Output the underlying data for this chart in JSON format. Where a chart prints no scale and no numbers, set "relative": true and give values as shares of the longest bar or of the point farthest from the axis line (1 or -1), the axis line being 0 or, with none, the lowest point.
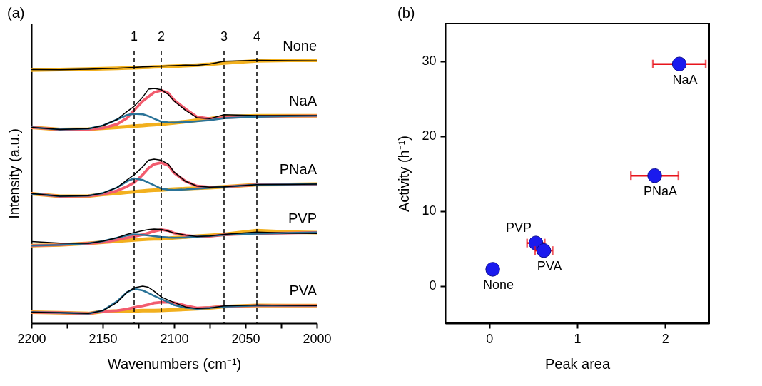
{
  "chart_data": [
    {
      "type": "line",
      "title": "(a)",
      "xlabel": "Wavenumbers (cm⁻¹)",
      "ylabel": "Intensity (a.u.)",
      "relative": true,
      "tick_labels": "x",
      "grid": false,
      "marker": "none",
      "line_style": "solid",
      "x": [
        2200,
        2180,
        2160,
        2150,
        2140,
        2133,
        2128,
        2122,
        2118,
        2114,
        2109,
        2104,
        2100,
        2092,
        2084,
        2075,
        2065,
        2042,
        2020,
        2000
      ],
      "xlim": [
        2200,
        2000
      ],
      "xticks": [
        2200,
        {
          "value": 2175,
          "label": null
        },
        2150,
        {
          "value": 2125,
          "label": null
        },
        2100,
        {
          "value": 2075,
          "label": null
        },
        2050,
        {
          "value": 2025,
          "label": null
        },
        2000
      ],
      "ref_lines": [
        {
          "axis": "x",
          "value": 2128,
          "line_style": "dashed",
          "color": "#000000"
        },
        {
          "axis": "x",
          "value": 2109,
          "line_style": "dashed",
          "color": "#000000"
        },
        {
          "axis": "x",
          "value": 2065,
          "line_style": "dashed",
          "color": "#000000"
        },
        {
          "axis": "x",
          "value": 2042,
          "line_style": "dashed",
          "color": "#000000"
        }
      ],
      "annotations": [
        "1",
        "2",
        "3",
        "4"
      ],
      "series": [
        {
          "name": "None",
          "color": "#000000",
          "values": [
            0.965,
            0.964,
            0.966,
            0.968,
            0.97,
            0.972,
            0.973,
            0.975,
            0.976,
            0.977,
            0.978,
            0.979,
            0.98,
            0.982,
            0.981,
            0.986,
            0.997,
            1.0,
            0.999,
            0.998
          ]
        },
        {
          "color": "#f2b01e",
          "values": [
            0.963,
            0.965,
            0.967,
            0.968,
            0.97,
            0.971,
            0.972,
            0.973,
            0.974,
            0.975,
            0.976,
            0.977,
            0.978,
            0.98,
            0.982,
            0.985,
            0.99,
            0.998,
            1.0,
            1.0
          ]
        },
        {
          "name": "NaA",
          "color": "#000000",
          "values": [
            0.745,
            0.737,
            0.74,
            0.752,
            0.775,
            0.805,
            0.825,
            0.86,
            0.89,
            0.893,
            0.888,
            0.87,
            0.845,
            0.81,
            0.782,
            0.778,
            0.793,
            0.79,
            0.79,
            0.789
          ]
        },
        {
          "color": "#f2b01e",
          "values": [
            0.745,
            0.737,
            0.738,
            0.742,
            0.745,
            0.748,
            0.75,
            0.752,
            0.754,
            0.755,
            0.757,
            0.76,
            0.762,
            0.767,
            0.772,
            0.778,
            0.786,
            0.789,
            0.789,
            0.789
          ]
        },
        {
          "color": "#f25c6e",
          "values": [
            0.745,
            0.737,
            0.738,
            0.742,
            0.757,
            0.78,
            0.81,
            0.845,
            0.862,
            0.878,
            0.886,
            0.875,
            0.849,
            0.815,
            0.785,
            0.778,
            0.782,
            0.787,
            0.788,
            0.789
          ]
        },
        {
          "color": "#2a7398",
          "values": [
            0.745,
            0.737,
            0.74,
            0.752,
            0.775,
            0.792,
            0.797,
            0.795,
            0.788,
            0.778,
            0.767,
            0.764,
            0.763,
            0.765,
            0.768,
            0.772,
            0.78,
            0.785,
            0.788,
            0.789
          ]
        },
        {
          "name": "PNaA",
          "color": "#000000",
          "values": [
            0.493,
            0.483,
            0.485,
            0.495,
            0.516,
            0.545,
            0.565,
            0.595,
            0.62,
            0.624,
            0.62,
            0.605,
            0.575,
            0.54,
            0.522,
            0.518,
            0.519,
            0.527,
            0.528,
            0.529
          ]
        },
        {
          "color": "#f2b01e",
          "values": [
            0.493,
            0.483,
            0.484,
            0.49,
            0.494,
            0.498,
            0.5,
            0.503,
            0.505,
            0.506,
            0.507,
            0.509,
            0.51,
            0.512,
            0.514,
            0.516,
            0.519,
            0.527,
            0.528,
            0.529
          ]
        },
        {
          "color": "#f25c6e",
          "values": [
            0.493,
            0.483,
            0.484,
            0.49,
            0.504,
            0.52,
            0.535,
            0.565,
            0.59,
            0.605,
            0.611,
            0.6,
            0.572,
            0.54,
            0.522,
            0.518,
            0.519,
            0.527,
            0.528,
            0.529
          ]
        },
        {
          "color": "#2a7398",
          "values": [
            0.493,
            0.483,
            0.485,
            0.495,
            0.516,
            0.54,
            0.551,
            0.545,
            0.535,
            0.525,
            0.512,
            0.508,
            0.507,
            0.509,
            0.512,
            0.515,
            0.519,
            0.527,
            0.528,
            0.529
          ]
        },
        {
          "name": "PVP",
          "color": "#000000",
          "values": [
            0.311,
            0.305,
            0.304,
            0.312,
            0.325,
            0.338,
            0.345,
            0.352,
            0.356,
            0.358,
            0.357,
            0.35,
            0.343,
            0.335,
            0.33,
            0.332,
            0.338,
            0.347,
            0.343,
            0.341
          ]
        },
        {
          "color": "#f2b01e",
          "values": [
            0.295,
            0.298,
            0.304,
            0.308,
            0.312,
            0.315,
            0.317,
            0.319,
            0.32,
            0.321,
            0.321,
            0.323,
            0.325,
            0.328,
            0.331,
            0.334,
            0.338,
            0.352,
            0.347,
            0.345
          ]
        },
        {
          "color": "#f25c6e",
          "values": [
            0.295,
            0.298,
            0.304,
            0.308,
            0.317,
            0.325,
            0.33,
            0.337,
            0.343,
            0.35,
            0.356,
            0.352,
            0.343,
            0.334,
            0.33,
            0.331,
            0.336,
            0.341,
            0.343,
            0.345
          ]
        },
        {
          "color": "#2a7398",
          "values": [
            0.295,
            0.298,
            0.304,
            0.312,
            0.325,
            0.334,
            0.338,
            0.336,
            0.334,
            0.331,
            0.328,
            0.326,
            0.325,
            0.326,
            0.329,
            0.332,
            0.336,
            0.341,
            0.343,
            0.345
          ]
        },
        {
          "name": "PVA",
          "color": "#000000",
          "values": [
            0.042,
            0.04,
            0.037,
            0.048,
            0.079,
            0.118,
            0.135,
            0.141,
            0.137,
            0.122,
            0.1,
            0.088,
            0.079,
            0.062,
            0.056,
            0.058,
            0.066,
            0.069,
            0.068,
            0.067
          ]
        },
        {
          "color": "#f2b01e",
          "values": [
            0.042,
            0.04,
            0.037,
            0.045,
            0.046,
            0.047,
            0.047,
            0.048,
            0.048,
            0.048,
            0.049,
            0.05,
            0.051,
            0.053,
            0.055,
            0.058,
            0.063,
            0.068,
            0.067,
            0.067
          ]
        },
        {
          "color": "#f25c6e",
          "values": [
            0.042,
            0.04,
            0.037,
            0.045,
            0.048,
            0.054,
            0.06,
            0.066,
            0.071,
            0.077,
            0.08,
            0.08,
            0.078,
            0.067,
            0.058,
            0.06,
            0.064,
            0.067,
            0.067,
            0.067
          ]
        },
        {
          "color": "#2a7398",
          "values": [
            0.042,
            0.04,
            0.037,
            0.048,
            0.083,
            0.118,
            0.131,
            0.125,
            0.115,
            0.104,
            0.092,
            0.08,
            0.069,
            0.059,
            0.055,
            0.058,
            0.063,
            0.067,
            0.067,
            0.067
          ]
        }
      ]
    },
    {
      "type": "scatter",
      "title": "(b)",
      "xlabel": "Peak area",
      "ylabel": "Activity (h⁻¹)",
      "grid": false,
      "marker": "circle",
      "xlim": [
        -0.5,
        2.5
      ],
      "xticks": [
        0,
        1,
        2
      ],
      "ylim": [
        -5,
        35
      ],
      "yticks": [
        0,
        10,
        20,
        30
      ],
      "series": [
        {
          "name": "None",
          "color": "#1a1aee",
          "x": [
            0.04
          ],
          "values": [
            2.2
          ]
        },
        {
          "name": "PVP",
          "color": "#1a1aee",
          "x": [
            0.53
          ],
          "values": [
            5.7
          ],
          "xerrors": [
            0.1
          ]
        },
        {
          "name": "PVA",
          "color": "#1a1aee",
          "x": [
            0.62
          ],
          "values": [
            4.7
          ],
          "xerrors": [
            0.1
          ]
        },
        {
          "name": "PNaA",
          "color": "#1a1aee",
          "x": [
            1.88
          ],
          "values": [
            14.7
          ],
          "xerrors": [
            0.27
          ]
        },
        {
          "name": "NaA",
          "color": "#1a1aee",
          "x": [
            2.16
          ],
          "values": [
            29.6
          ],
          "xerrors": [
            0.3
          ]
        }
      ]
    }
  ]
}
